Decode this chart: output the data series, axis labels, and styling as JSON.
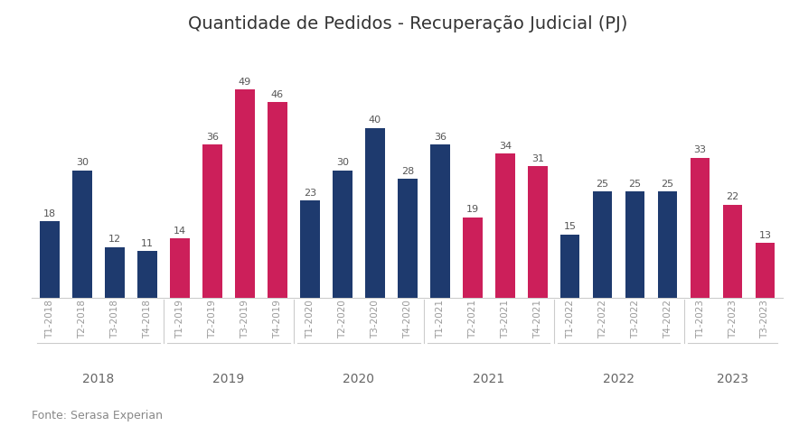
{
  "title": "Quantidade de Pedidos - Recuperação Judicial (PJ)",
  "footnote": "Fonte: Serasa Experian",
  "bars": [
    {
      "label": "T1-2018",
      "value": 18,
      "color": "#1e3a6e",
      "year": "2018"
    },
    {
      "label": "T2-2018",
      "value": 30,
      "color": "#1e3a6e",
      "year": "2018"
    },
    {
      "label": "T3-2018",
      "value": 12,
      "color": "#1e3a6e",
      "year": "2018"
    },
    {
      "label": "T4-2018",
      "value": 11,
      "color": "#1e3a6e",
      "year": "2018"
    },
    {
      "label": "T1-2019",
      "value": 14,
      "color": "#cc1f5a",
      "year": "2019"
    },
    {
      "label": "T2-2019",
      "value": 36,
      "color": "#cc1f5a",
      "year": "2019"
    },
    {
      "label": "T3-2019",
      "value": 49,
      "color": "#cc1f5a",
      "year": "2019"
    },
    {
      "label": "T4-2019",
      "value": 46,
      "color": "#cc1f5a",
      "year": "2019"
    },
    {
      "label": "T1-2020",
      "value": 23,
      "color": "#1e3a6e",
      "year": "2020"
    },
    {
      "label": "T2-2020",
      "value": 30,
      "color": "#1e3a6e",
      "year": "2020"
    },
    {
      "label": "T3-2020",
      "value": 40,
      "color": "#1e3a6e",
      "year": "2020"
    },
    {
      "label": "T4-2020",
      "value": 28,
      "color": "#1e3a6e",
      "year": "2020"
    },
    {
      "label": "T1-2021",
      "value": 36,
      "color": "#1e3a6e",
      "year": "2021"
    },
    {
      "label": "T2-2021",
      "value": 19,
      "color": "#cc1f5a",
      "year": "2021"
    },
    {
      "label": "T3-2021",
      "value": 34,
      "color": "#cc1f5a",
      "year": "2021"
    },
    {
      "label": "T4-2021",
      "value": 31,
      "color": "#cc1f5a",
      "year": "2021"
    },
    {
      "label": "T1-2022",
      "value": 15,
      "color": "#1e3a6e",
      "year": "2022"
    },
    {
      "label": "T2-2022",
      "value": 25,
      "color": "#1e3a6e",
      "year": "2022"
    },
    {
      "label": "T3-2022",
      "value": 25,
      "color": "#1e3a6e",
      "year": "2022"
    },
    {
      "label": "T4-2022",
      "value": 25,
      "color": "#1e3a6e",
      "year": "2022"
    },
    {
      "label": "T1-2023",
      "value": 33,
      "color": "#cc1f5a",
      "year": "2023"
    },
    {
      "label": "T2-2023",
      "value": 22,
      "color": "#cc1f5a",
      "year": "2023"
    },
    {
      "label": "T3-2023",
      "value": 13,
      "color": "#cc1f5a",
      "year": "2023"
    }
  ],
  "years": [
    "2018",
    "2019",
    "2020",
    "2021",
    "2022",
    "2023"
  ],
  "year_bar_counts": [
    4,
    4,
    4,
    4,
    4,
    3
  ],
  "ylim": [
    0,
    58
  ],
  "bar_width": 0.6,
  "background_color": "#ffffff",
  "spine_color": "#cccccc",
  "title_fontsize": 14,
  "tick_label_fontsize": 7.5,
  "value_fontsize": 8,
  "year_label_fontsize": 10,
  "footnote_fontsize": 9,
  "value_color": "#555555",
  "tick_color": "#999999",
  "year_label_color": "#666666"
}
